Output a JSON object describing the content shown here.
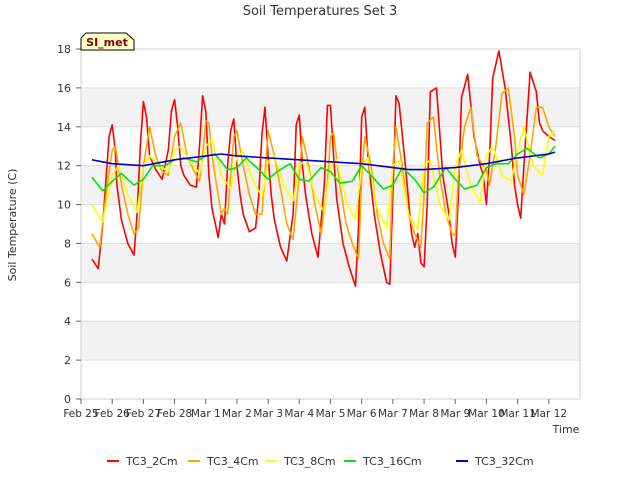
{
  "chart_data": {
    "type": "line",
    "title": "Soil Temperatures Set 3",
    "xlabel": "Time",
    "ylabel": "Soil Temperature (C)",
    "site_badge": "SI_met",
    "ylim": [
      0,
      18
    ],
    "yticks": [
      0,
      2,
      4,
      6,
      8,
      10,
      12,
      14,
      16,
      18
    ],
    "xlim_days": [
      0,
      16
    ],
    "x_tick_labels": [
      "Feb 25",
      "Feb 26",
      "Feb 27",
      "Feb 28",
      "Mar 1",
      "Mar 2",
      "Mar 3",
      "Mar 4",
      "Mar 5",
      "Mar 6",
      "Mar 7",
      "Mar 8",
      "Mar 9",
      "Mar 10",
      "Mar 11",
      "Mar 12"
    ],
    "grid": true,
    "legend_position": "bottom",
    "series": [
      {
        "name": "TC3_2Cm",
        "color": "#ff0000",
        "days": [
          0.35,
          0.55,
          0.7,
          0.9,
          1.0,
          1.1,
          1.15,
          1.3,
          1.5,
          1.7,
          1.8,
          1.9,
          2.0,
          2.1,
          2.2,
          2.4,
          2.6,
          2.8,
          2.9,
          3.0,
          3.1,
          3.2,
          3.3,
          3.5,
          3.7,
          3.8,
          3.9,
          4.0,
          4.1,
          4.2,
          4.4,
          4.5,
          4.6,
          4.7,
          4.8,
          4.9,
          5.0,
          5.1,
          5.2,
          5.4,
          5.6,
          5.7,
          5.8,
          5.9,
          6.0,
          6.1,
          6.2,
          6.4,
          6.6,
          6.8,
          6.9,
          7.0,
          7.1,
          7.2,
          7.4,
          7.6,
          7.8,
          7.9,
          8.0,
          8.1,
          8.2,
          8.4,
          8.6,
          8.8,
          8.9,
          9.0,
          9.1,
          9.2,
          9.4,
          9.6,
          9.8,
          9.9,
          10.0,
          10.1,
          10.2,
          10.4,
          10.6,
          10.7,
          10.8,
          10.9,
          11.0,
          11.1,
          11.2,
          11.4,
          11.6,
          11.8,
          11.9,
          12.0,
          12.1,
          12.2,
          12.4,
          12.6,
          12.8,
          12.9,
          13.0,
          13.1,
          13.2,
          13.4,
          13.6,
          13.8,
          13.9,
          14.0,
          14.1,
          14.2,
          14.4,
          14.6,
          14.7,
          14.8,
          15.0,
          15.2
        ],
        "values": [
          7.2,
          6.7,
          9.0,
          13.5,
          14.1,
          12.8,
          11.0,
          9.2,
          8.0,
          7.4,
          9.5,
          13.0,
          15.3,
          14.5,
          12.5,
          11.8,
          11.3,
          12.8,
          14.8,
          15.4,
          14.0,
          12.0,
          11.5,
          11.0,
          10.9,
          13.0,
          15.6,
          14.8,
          11.5,
          9.8,
          8.3,
          9.5,
          9.0,
          12.0,
          13.8,
          14.4,
          12.0,
          10.5,
          9.5,
          8.6,
          8.8,
          10.5,
          13.6,
          15.0,
          12.5,
          10.5,
          9.2,
          7.8,
          7.1,
          9.5,
          14.1,
          14.6,
          12.0,
          10.5,
          8.5,
          7.3,
          11.0,
          15.1,
          15.1,
          12.5,
          10.3,
          8.0,
          6.8,
          5.8,
          9.0,
          14.5,
          15.0,
          12.5,
          9.5,
          7.5,
          6.0,
          5.9,
          10.5,
          15.6,
          15.2,
          12.0,
          8.5,
          7.8,
          8.5,
          7.0,
          6.8,
          10.0,
          15.8,
          16.0,
          11.5,
          9.5,
          8.0,
          7.3,
          10.5,
          15.5,
          16.7,
          13.5,
          12.0,
          11.5,
          10.0,
          12.5,
          16.5,
          17.9,
          16.0,
          13.0,
          11.0,
          10.0,
          9.3,
          12.0,
          16.8,
          15.8,
          14.2,
          13.8,
          13.5,
          13.3
        ]
      },
      {
        "name": "TC3_4Cm",
        "color": "#ffa500",
        "days": [
          0.35,
          0.6,
          0.8,
          1.0,
          1.1,
          1.3,
          1.5,
          1.7,
          1.85,
          2.0,
          2.2,
          2.4,
          2.6,
          2.8,
          3.0,
          3.2,
          3.4,
          3.6,
          3.8,
          3.9,
          4.0,
          4.1,
          4.2,
          4.4,
          4.5,
          4.6,
          4.7,
          4.8,
          4.9,
          5.0,
          5.2,
          5.4,
          5.6,
          5.8,
          5.9,
          6.0,
          6.2,
          6.4,
          6.6,
          6.8,
          7.0,
          7.1,
          7.3,
          7.5,
          7.7,
          7.9,
          8.0,
          8.1,
          8.3,
          8.5,
          8.7,
          8.9,
          9.0,
          9.1,
          9.3,
          9.5,
          9.7,
          9.9,
          10.0,
          10.1,
          10.3,
          10.5,
          10.7,
          10.9,
          11.0,
          11.1,
          11.3,
          11.5,
          11.7,
          11.9,
          12.0,
          12.1,
          12.3,
          12.5,
          12.7,
          12.9,
          13.0,
          13.1,
          13.3,
          13.5,
          13.7,
          13.9,
          14.0,
          14.2,
          14.4,
          14.6,
          14.8,
          15.0,
          15.2
        ],
        "values": [
          8.5,
          7.8,
          10.5,
          12.8,
          13.0,
          11.0,
          9.5,
          8.5,
          8.8,
          12.0,
          14.0,
          12.5,
          11.7,
          11.5,
          13.5,
          14.2,
          12.5,
          11.8,
          11.2,
          12.5,
          14.3,
          14.2,
          12.5,
          10.5,
          9.5,
          9.8,
          9.5,
          11.5,
          13.5,
          13.8,
          12.0,
          10.5,
          9.5,
          9.5,
          11.5,
          13.8,
          12.5,
          10.8,
          9.0,
          8.2,
          11.5,
          13.5,
          12.0,
          10.0,
          8.5,
          11.0,
          13.5,
          13.7,
          11.0,
          9.0,
          8.0,
          7.2,
          11.5,
          13.5,
          12.0,
          9.5,
          8.0,
          7.2,
          12.0,
          14.0,
          12.0,
          9.5,
          8.5,
          7.8,
          10.5,
          14.2,
          14.5,
          11.5,
          9.5,
          8.5,
          8.4,
          11.5,
          14.0,
          15.0,
          12.5,
          12.0,
          11.8,
          11.0,
          13.0,
          15.7,
          16.0,
          13.5,
          11.5,
          10.5,
          12.5,
          15.0,
          15.0,
          14.0,
          13.5
        ]
      },
      {
        "name": "TC3_8Cm",
        "color": "#ffff00",
        "days": [
          0.35,
          0.7,
          1.0,
          1.2,
          1.5,
          1.8,
          2.0,
          2.2,
          2.5,
          2.8,
          3.0,
          3.2,
          3.5,
          3.8,
          4.0,
          4.2,
          4.5,
          4.8,
          5.0,
          5.2,
          5.5,
          5.8,
          6.0,
          6.2,
          6.5,
          6.8,
          7.0,
          7.2,
          7.5,
          7.8,
          8.0,
          8.2,
          8.5,
          8.8,
          9.0,
          9.2,
          9.5,
          9.8,
          10.0,
          10.2,
          10.5,
          10.8,
          11.0,
          11.2,
          11.5,
          11.8,
          12.0,
          12.2,
          12.5,
          12.8,
          13.0,
          13.2,
          13.5,
          13.8,
          14.0,
          14.2,
          14.5,
          14.8,
          15.0,
          15.2
        ],
        "values": [
          10.0,
          9.1,
          11.5,
          12.0,
          10.5,
          9.6,
          12.0,
          12.5,
          12.0,
          11.7,
          12.8,
          13.0,
          12.2,
          11.6,
          13.0,
          13.3,
          11.5,
          10.8,
          12.5,
          12.7,
          11.3,
          10.4,
          12.2,
          12.5,
          11.0,
          10.2,
          12.0,
          12.3,
          10.5,
          9.6,
          12.0,
          12.3,
          10.2,
          9.2,
          12.0,
          12.4,
          9.8,
          8.8,
          12.0,
          12.3,
          9.5,
          8.7,
          12.0,
          12.3,
          10.0,
          9.2,
          12.0,
          12.8,
          11.0,
          10.1,
          12.5,
          13.0,
          11.5,
          11.2,
          12.8,
          14.0,
          12.0,
          11.5,
          13.5,
          13.8
        ]
      },
      {
        "name": "TC3_16Cm",
        "color": "#00e600",
        "days": [
          0.35,
          0.7,
          1.0,
          1.3,
          1.7,
          2.0,
          2.3,
          2.7,
          3.0,
          3.3,
          3.7,
          4.0,
          4.3,
          4.7,
          5.0,
          5.3,
          5.7,
          6.0,
          6.3,
          6.7,
          7.0,
          7.3,
          7.7,
          8.0,
          8.3,
          8.7,
          9.0,
          9.3,
          9.7,
          10.0,
          10.3,
          10.7,
          11.0,
          11.3,
          11.7,
          12.0,
          12.3,
          12.7,
          13.0,
          13.3,
          13.7,
          14.0,
          14.3,
          14.7,
          15.0,
          15.2
        ],
        "values": [
          11.4,
          10.7,
          11.2,
          11.6,
          11.0,
          11.3,
          12.0,
          12.0,
          12.3,
          12.4,
          12.2,
          12.5,
          12.6,
          11.8,
          11.9,
          12.4,
          11.8,
          11.3,
          11.7,
          12.1,
          11.3,
          11.2,
          11.9,
          11.7,
          11.1,
          11.2,
          12.0,
          11.5,
          10.8,
          11.0,
          11.9,
          11.3,
          10.6,
          10.9,
          11.9,
          11.3,
          10.8,
          11.0,
          11.9,
          12.1,
          12.1,
          12.6,
          12.9,
          12.4,
          12.6,
          13.0
        ]
      },
      {
        "name": "TC3_32Cm",
        "color": "#0000cc",
        "days": [
          0.35,
          1.0,
          2.0,
          3.0,
          4.0,
          4.5,
          5.0,
          6.0,
          7.0,
          8.0,
          9.0,
          10.0,
          10.5,
          11.0,
          12.0,
          13.0,
          14.0,
          15.0,
          15.2
        ],
        "values": [
          12.3,
          12.1,
          12.0,
          12.3,
          12.5,
          12.6,
          12.5,
          12.4,
          12.3,
          12.2,
          12.1,
          11.9,
          11.8,
          11.8,
          11.9,
          12.1,
          12.4,
          12.6,
          12.7
        ]
      }
    ]
  }
}
